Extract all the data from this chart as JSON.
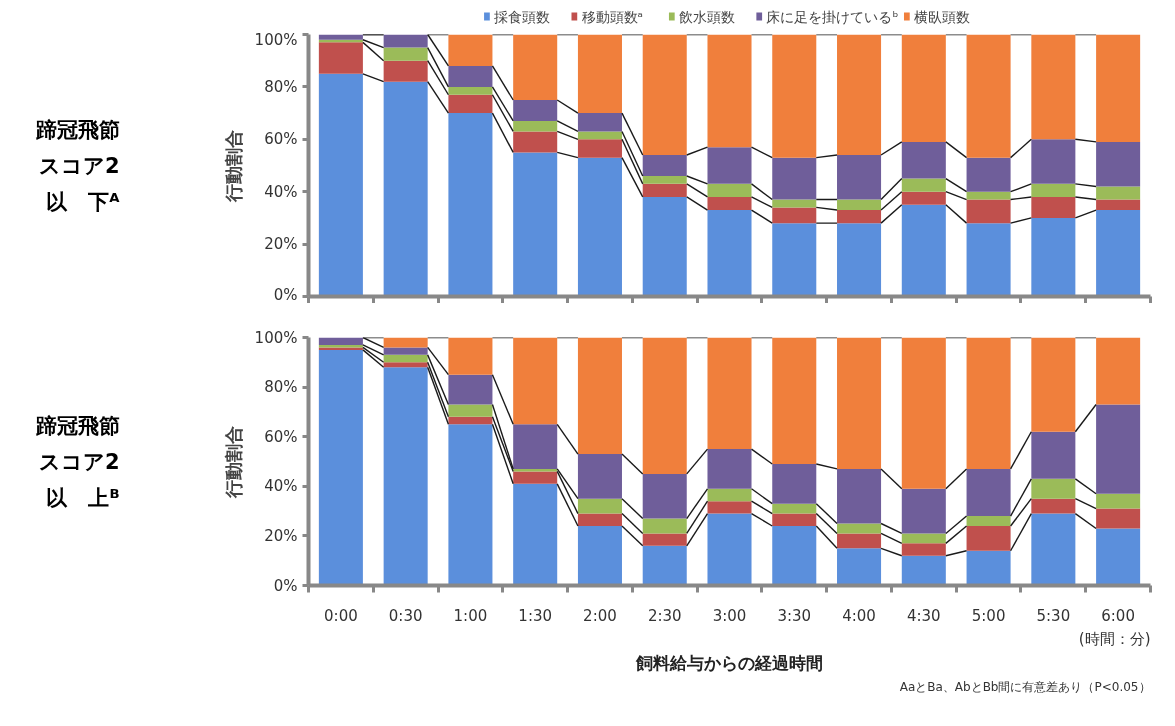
{
  "chart_data": [
    {
      "type": "bar",
      "stacked": true,
      "annotations": [
        "蹄冠飛節スコア2以　下ᴬ"
      ],
      "ylabel": "行動割合",
      "categories": [
        null,
        null,
        null,
        null,
        null,
        null,
        null,
        null,
        null,
        null,
        null,
        null,
        null
      ],
      "ylim": [
        0,
        100
      ],
      "yticks": [
        {
          "value": 0,
          "label": "0%"
        },
        {
          "value": 20,
          "label": "20%"
        },
        {
          "value": 40,
          "label": "40%"
        },
        {
          "value": 60,
          "label": "60%"
        },
        {
          "value": 80,
          "label": "80%"
        },
        {
          "value": 100,
          "label": "100%"
        }
      ],
      "grid": false,
      "legend": "top",
      "tick_labels": "y",
      "series": [
        {
          "name": "採食頭数",
          "color": "#5b8fdc",
          "values": [
            85,
            82,
            70,
            55,
            53,
            38,
            33,
            28,
            28,
            35,
            28,
            30,
            33
          ]
        },
        {
          "name": "移動頭数ᵃ",
          "color": "#c0504d",
          "values": [
            12,
            8,
            7,
            8,
            7,
            5,
            5,
            6,
            5,
            5,
            9,
            8,
            4
          ]
        },
        {
          "name": "飲水頭数",
          "color": "#9bbb59",
          "values": [
            1,
            5,
            3,
            4,
            3,
            3,
            5,
            3,
            4,
            5,
            3,
            5,
            5
          ]
        },
        {
          "name": "床に足を掛けているᵇ",
          "color": "#6f5e9a",
          "values": [
            2,
            5,
            8,
            8,
            7,
            8,
            14,
            16,
            17,
            14,
            13,
            17,
            17
          ]
        },
        {
          "name": "横臥頭数",
          "color": "#f07f3c",
          "values": [
            0,
            0,
            12,
            25,
            30,
            46,
            43,
            47,
            46,
            41,
            47,
            40,
            41
          ]
        }
      ]
    },
    {
      "type": "bar",
      "stacked": true,
      "ylabel": "行動割合",
      "xlabel": "飼料給与からの経過時間",
      "categories": [
        "0:00",
        "0:30",
        "1:00",
        "1:30",
        "2:00",
        "2:30",
        "3:00",
        "3:30",
        "4:00",
        "4:30",
        "5:00",
        "5:30",
        "6:00"
      ],
      "ylim": [
        0,
        100
      ],
      "yticks": [
        {
          "value": 0,
          "label": "0%"
        },
        {
          "value": 20,
          "label": "20%"
        },
        {
          "value": 40,
          "label": "40%"
        },
        {
          "value": 60,
          "label": "60%"
        },
        {
          "value": 80,
          "label": "80%"
        },
        {
          "value": 100,
          "label": "100%"
        }
      ],
      "grid": false,
      "annotations": [
        "蹄冠飛節スコア2以　上ᴮ",
        "(時間：分)",
        "AaとBa、AbとBb間に有意差あり（P<0.05）"
      ],
      "series": [
        {
          "color": "#5b8fdc",
          "values": [
            95,
            88,
            65,
            41,
            24,
            16,
            29,
            24,
            15,
            12,
            14,
            29,
            23
          ]
        },
        {
          "color": "#c0504d",
          "values": [
            1,
            2,
            3,
            5,
            5,
            5,
            5,
            5,
            6,
            5,
            10,
            6,
            8
          ]
        },
        {
          "color": "#9bbb59",
          "values": [
            1,
            3,
            5,
            1,
            6,
            6,
            5,
            4,
            4,
            4,
            4,
            8,
            6
          ]
        },
        {
          "color": "#6f5e9a",
          "values": [
            3,
            3,
            12,
            18,
            18,
            18,
            16,
            16,
            22,
            18,
            19,
            19,
            36
          ]
        },
        {
          "color": "#f07f3c",
          "values": [
            0,
            4,
            15,
            35,
            47,
            55,
            45,
            51,
            53,
            61,
            53,
            38,
            27
          ]
        }
      ]
    }
  ]
}
